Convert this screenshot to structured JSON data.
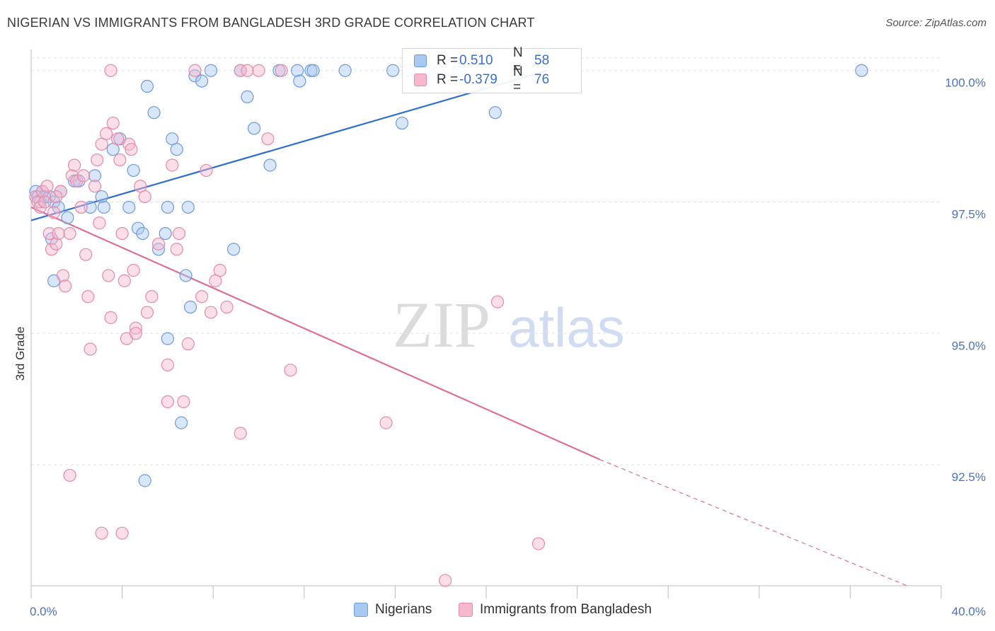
{
  "header": {
    "title": "NIGERIAN VS IMMIGRANTS FROM BANGLADESH 3RD GRADE CORRELATION CHART",
    "source": "Source: ZipAtlas.com"
  },
  "watermark": {
    "part1": "ZIP",
    "part2": "atlas"
  },
  "colors": {
    "blue_fill": "#a9c8f2",
    "blue_stroke": "#6d9be0",
    "blue_line": "#2f6fcf",
    "pink_fill": "#f6b8cc",
    "pink_stroke": "#e88aa8",
    "pink_line": "#de6f98",
    "tick_text": "#4a72c4",
    "grid": "#e3e3e3"
  },
  "legend_top": {
    "rows": [
      {
        "r_label": "R =",
        "r_value": "0.510",
        "n_label": "N =",
        "n_value": "58"
      },
      {
        "r_label": "R =",
        "r_value": "-0.379",
        "n_label": "N =",
        "n_value": "76"
      }
    ]
  },
  "legend_bottom": {
    "items": [
      "Nigerians",
      "Immigrants from Bangladesh"
    ]
  },
  "chart_data": {
    "type": "scatter",
    "title": "NIGERIAN VS IMMIGRANTS FROM BANGLADESH 3RD GRADE CORRELATION CHART",
    "xlabel": "",
    "ylabel": "3rd Grade",
    "xlim": [
      0,
      40
    ],
    "ylim": [
      90.2,
      100.4
    ],
    "x_tick_labels": [
      "0.0%",
      "40.0%"
    ],
    "y_ticks": [
      92.5,
      95.0,
      97.5,
      100.0
    ],
    "y_tick_labels": [
      "92.5%",
      "95.0%",
      "97.5%",
      "100.0%"
    ],
    "grid": "horizontal dashed",
    "legend_position": "bottom",
    "series": [
      {
        "name": "Nigerians",
        "color": "#a9c8f2",
        "R": 0.51,
        "N": 58,
        "trend": {
          "x": [
            0.0,
            22.7
          ],
          "y": [
            97.15,
            100.0
          ]
        },
        "points": [
          [
            0.2,
            97.7
          ],
          [
            0.3,
            97.6
          ],
          [
            0.4,
            97.5
          ],
          [
            0.5,
            97.7
          ],
          [
            0.6,
            97.6
          ],
          [
            0.8,
            97.6
          ],
          [
            1.0,
            97.5
          ],
          [
            0.9,
            96.8
          ],
          [
            1.2,
            97.4
          ],
          [
            1.3,
            97.7
          ],
          [
            1.6,
            97.2
          ],
          [
            1.9,
            97.9
          ],
          [
            2.1,
            97.9
          ],
          [
            2.8,
            98.0
          ],
          [
            2.6,
            97.4
          ],
          [
            3.1,
            97.6
          ],
          [
            3.2,
            97.4
          ],
          [
            3.6,
            98.5
          ],
          [
            3.9,
            98.7
          ],
          [
            4.3,
            97.4
          ],
          [
            4.5,
            98.1
          ],
          [
            4.7,
            97.0
          ],
          [
            4.9,
            96.9
          ],
          [
            5.1,
            99.7
          ],
          [
            5.4,
            99.2
          ],
          [
            5.6,
            96.6
          ],
          [
            5.9,
            96.9
          ],
          [
            6.0,
            97.4
          ],
          [
            6.2,
            98.7
          ],
          [
            6.4,
            98.5
          ],
          [
            6.8,
            96.1
          ],
          [
            6.9,
            97.4
          ],
          [
            7.0,
            95.5
          ],
          [
            6.6,
            93.3
          ],
          [
            7.2,
            99.9
          ],
          [
            7.5,
            99.8
          ],
          [
            7.9,
            100.0
          ],
          [
            8.9,
            96.6
          ],
          [
            9.2,
            100.0
          ],
          [
            9.5,
            99.5
          ],
          [
            9.8,
            98.9
          ],
          [
            10.5,
            98.2
          ],
          [
            10.9,
            100.0
          ],
          [
            11.7,
            100.0
          ],
          [
            11.8,
            99.8
          ],
          [
            12.3,
            100.0
          ],
          [
            12.4,
            100.0
          ],
          [
            13.8,
            100.0
          ],
          [
            15.9,
            100.0
          ],
          [
            16.3,
            99.0
          ],
          [
            16.6,
            100.0
          ],
          [
            17.9,
            100.0
          ],
          [
            18.8,
            100.0
          ],
          [
            20.4,
            99.2
          ],
          [
            1.0,
            96.0
          ],
          [
            5.0,
            92.2
          ],
          [
            6.0,
            94.9
          ],
          [
            36.5,
            100.0
          ]
        ]
      },
      {
        "name": "Immigrants from Bangladesh",
        "color": "#f6b8cc",
        "R": -0.379,
        "N": 76,
        "trend": {
          "x": [
            0.0,
            25.0
          ],
          "y": [
            97.4,
            92.6
          ]
        },
        "trend_dashed": {
          "x": [
            25.0,
            38.5
          ],
          "y": [
            92.6,
            90.2
          ]
        },
        "points": [
          [
            0.2,
            97.6
          ],
          [
            0.3,
            97.5
          ],
          [
            0.4,
            97.4
          ],
          [
            0.5,
            97.7
          ],
          [
            0.6,
            97.5
          ],
          [
            0.7,
            97.8
          ],
          [
            0.8,
            96.9
          ],
          [
            0.9,
            96.6
          ],
          [
            1.0,
            97.3
          ],
          [
            1.1,
            96.7
          ],
          [
            1.2,
            96.9
          ],
          [
            1.3,
            97.7
          ],
          [
            1.4,
            96.1
          ],
          [
            1.5,
            95.9
          ],
          [
            1.7,
            96.9
          ],
          [
            1.8,
            98.0
          ],
          [
            1.9,
            98.2
          ],
          [
            2.0,
            97.9
          ],
          [
            2.2,
            97.4
          ],
          [
            2.3,
            98.0
          ],
          [
            2.4,
            96.5
          ],
          [
            2.5,
            95.7
          ],
          [
            2.6,
            94.7
          ],
          [
            2.8,
            97.8
          ],
          [
            2.9,
            98.3
          ],
          [
            3.0,
            97.1
          ],
          [
            3.1,
            98.6
          ],
          [
            3.3,
            98.8
          ],
          [
            3.4,
            96.1
          ],
          [
            3.5,
            95.3
          ],
          [
            3.6,
            99.0
          ],
          [
            3.8,
            98.7
          ],
          [
            3.9,
            98.3
          ],
          [
            4.0,
            96.9
          ],
          [
            4.1,
            96.0
          ],
          [
            4.2,
            94.9
          ],
          [
            4.3,
            98.6
          ],
          [
            4.4,
            98.5
          ],
          [
            4.5,
            96.2
          ],
          [
            4.6,
            95.1
          ],
          [
            4.8,
            97.8
          ],
          [
            5.0,
            97.6
          ],
          [
            5.1,
            95.4
          ],
          [
            5.3,
            95.7
          ],
          [
            5.6,
            96.7
          ],
          [
            6.0,
            94.4
          ],
          [
            6.2,
            98.2
          ],
          [
            6.4,
            96.6
          ],
          [
            6.5,
            96.9
          ],
          [
            6.7,
            93.7
          ],
          [
            6.9,
            94.8
          ],
          [
            7.2,
            100.0
          ],
          [
            7.5,
            95.7
          ],
          [
            7.7,
            98.1
          ],
          [
            7.9,
            95.4
          ],
          [
            8.1,
            96.0
          ],
          [
            8.3,
            96.2
          ],
          [
            8.6,
            95.5
          ],
          [
            9.2,
            100.0
          ],
          [
            9.5,
            100.0
          ],
          [
            10.0,
            100.0
          ],
          [
            10.4,
            98.7
          ],
          [
            11.0,
            100.0
          ],
          [
            11.4,
            94.3
          ],
          [
            1.7,
            92.3
          ],
          [
            3.1,
            91.2
          ],
          [
            4.0,
            91.2
          ],
          [
            4.6,
            95.0
          ],
          [
            6.0,
            93.7
          ],
          [
            9.2,
            93.1
          ],
          [
            15.6,
            93.3
          ],
          [
            18.2,
            90.3
          ],
          [
            20.5,
            95.6
          ],
          [
            22.3,
            91.0
          ],
          [
            3.5,
            100.0
          ],
          [
            1.1,
            97.6
          ]
        ]
      }
    ]
  }
}
